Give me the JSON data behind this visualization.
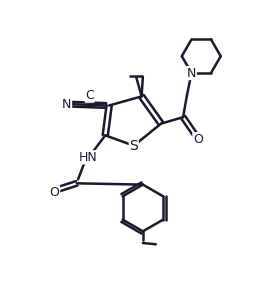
{
  "bg_color": "#ffffff",
  "line_color": "#1a1a2e",
  "line_width": 1.8,
  "font_size_atoms": 9,
  "figsize": [
    2.65,
    2.94
  ],
  "dpi": 100,
  "xlim": [
    0,
    10
  ],
  "ylim": [
    0,
    11
  ]
}
